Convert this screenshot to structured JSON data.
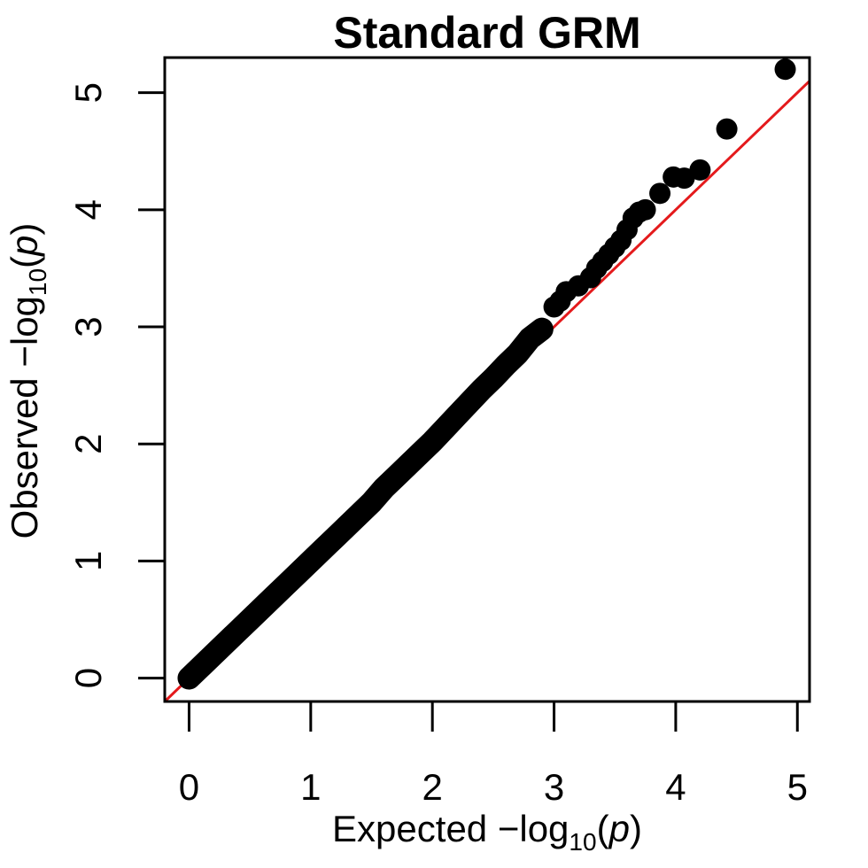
{
  "chart_data": {
    "type": "scatter",
    "title": "Standard GRM",
    "xlabel": {
      "prefix": "Expected  −log",
      "sub": "10",
      "suffix": "(",
      "var": "p",
      "close": ")"
    },
    "ylabel": {
      "prefix": "Observed  −log",
      "sub": "10",
      "suffix": "(",
      "var": "p",
      "close": ")"
    },
    "xlim": [
      -0.2,
      5.1
    ],
    "ylim": [
      -0.2,
      5.3
    ],
    "xticks": [
      0,
      1,
      2,
      3,
      4,
      5
    ],
    "yticks": [
      0,
      1,
      2,
      3,
      4,
      5
    ],
    "xtick_labels": [
      "0",
      "1",
      "2",
      "3",
      "4",
      "5"
    ],
    "ytick_labels": [
      "0",
      "1",
      "2",
      "3",
      "4",
      "5"
    ],
    "reference_line": {
      "from": [
        -0.2,
        -0.2
      ],
      "to": [
        5.1,
        5.1
      ],
      "color": "#e41a1c"
    },
    "point_color": "#000000",
    "series": [
      {
        "points": [
          [
            0.0,
            0.0
          ],
          [
            0.1,
            0.1
          ],
          [
            0.2,
            0.2
          ],
          [
            0.3,
            0.3
          ],
          [
            0.4,
            0.4
          ],
          [
            0.5,
            0.5
          ],
          [
            0.6,
            0.6
          ],
          [
            0.7,
            0.7
          ],
          [
            0.8,
            0.8
          ],
          [
            0.9,
            0.9
          ],
          [
            1.0,
            1.0
          ],
          [
            1.1,
            1.1
          ],
          [
            1.2,
            1.2
          ],
          [
            1.3,
            1.3
          ],
          [
            1.4,
            1.4
          ],
          [
            1.5,
            1.5
          ],
          [
            1.6,
            1.62
          ],
          [
            1.7,
            1.72
          ],
          [
            1.8,
            1.82
          ],
          [
            1.9,
            1.92
          ],
          [
            2.0,
            2.02
          ],
          [
            2.1,
            2.13
          ],
          [
            2.2,
            2.24
          ],
          [
            2.3,
            2.35
          ],
          [
            2.4,
            2.46
          ],
          [
            2.5,
            2.56
          ],
          [
            2.6,
            2.67
          ],
          [
            2.7,
            2.77
          ],
          [
            2.8,
            2.9
          ],
          [
            2.9,
            2.98
          ],
          [
            3.0,
            3.17
          ],
          [
            3.05,
            3.22
          ],
          [
            3.1,
            3.3
          ],
          [
            3.2,
            3.35
          ],
          [
            3.3,
            3.42
          ],
          [
            3.35,
            3.5
          ],
          [
            3.4,
            3.56
          ],
          [
            3.45,
            3.62
          ],
          [
            3.5,
            3.68
          ],
          [
            3.55,
            3.74
          ],
          [
            3.6,
            3.83
          ],
          [
            3.65,
            3.93
          ],
          [
            3.7,
            3.98
          ],
          [
            3.75,
            4.0
          ],
          [
            3.87,
            4.14
          ],
          [
            3.98,
            4.28
          ],
          [
            4.07,
            4.27
          ],
          [
            4.2,
            4.34
          ],
          [
            4.42,
            4.69
          ],
          [
            4.9,
            5.2
          ]
        ]
      }
    ]
  }
}
